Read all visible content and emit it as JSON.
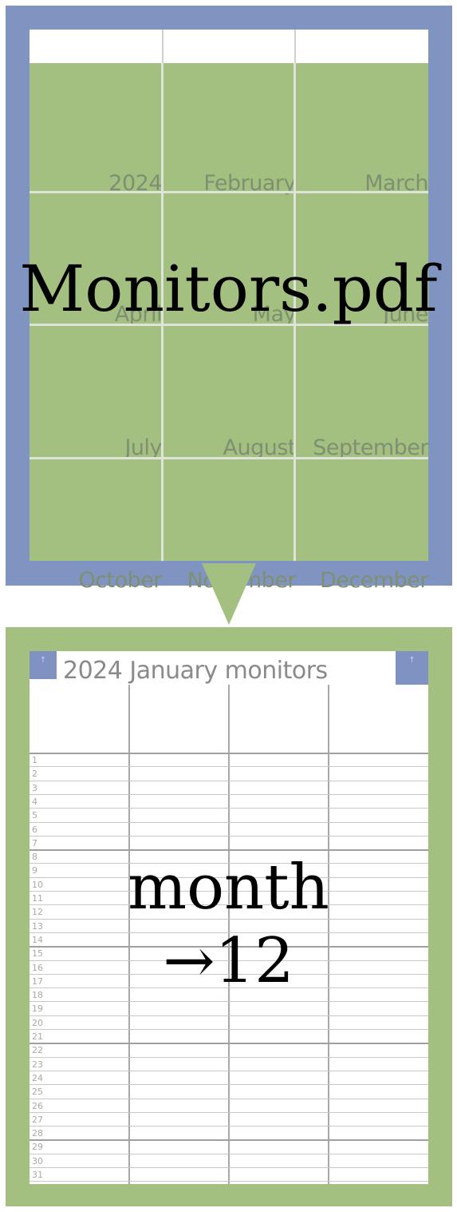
{
  "colors": {
    "frame_blue": "#8094c2",
    "frame_green": "#a4c080",
    "cell_green": "#a4c080",
    "grid_line_light": "#dfe4d8",
    "month_label_gray": "#7f8f72",
    "title_gray": "#8a8a8a",
    "corner_button_blue": "#7f92c2"
  },
  "index_page": {
    "overlay_title": "Monitors.pdf",
    "months": [
      "2024",
      "February",
      "March",
      "April",
      "May",
      "June",
      "July",
      "August",
      "September",
      "October",
      "November",
      "December"
    ]
  },
  "month_page": {
    "title": "2024 January monitors",
    "corner_left_icon": "up-arrow-icon",
    "corner_left_glyph": "↑",
    "corner_right_icon": "up-arrow-icon",
    "corner_right_glyph": "↑",
    "days": [
      "1",
      "2",
      "3",
      "4",
      "5",
      "6",
      "7",
      "8",
      "9",
      "10",
      "11",
      "12",
      "13",
      "14",
      "15",
      "16",
      "17",
      "18",
      "19",
      "20",
      "21",
      "22",
      "23",
      "24",
      "25",
      "26",
      "27",
      "28",
      "29",
      "30",
      "31"
    ],
    "overlay_line1": "month",
    "overlay_line2": "→12"
  }
}
